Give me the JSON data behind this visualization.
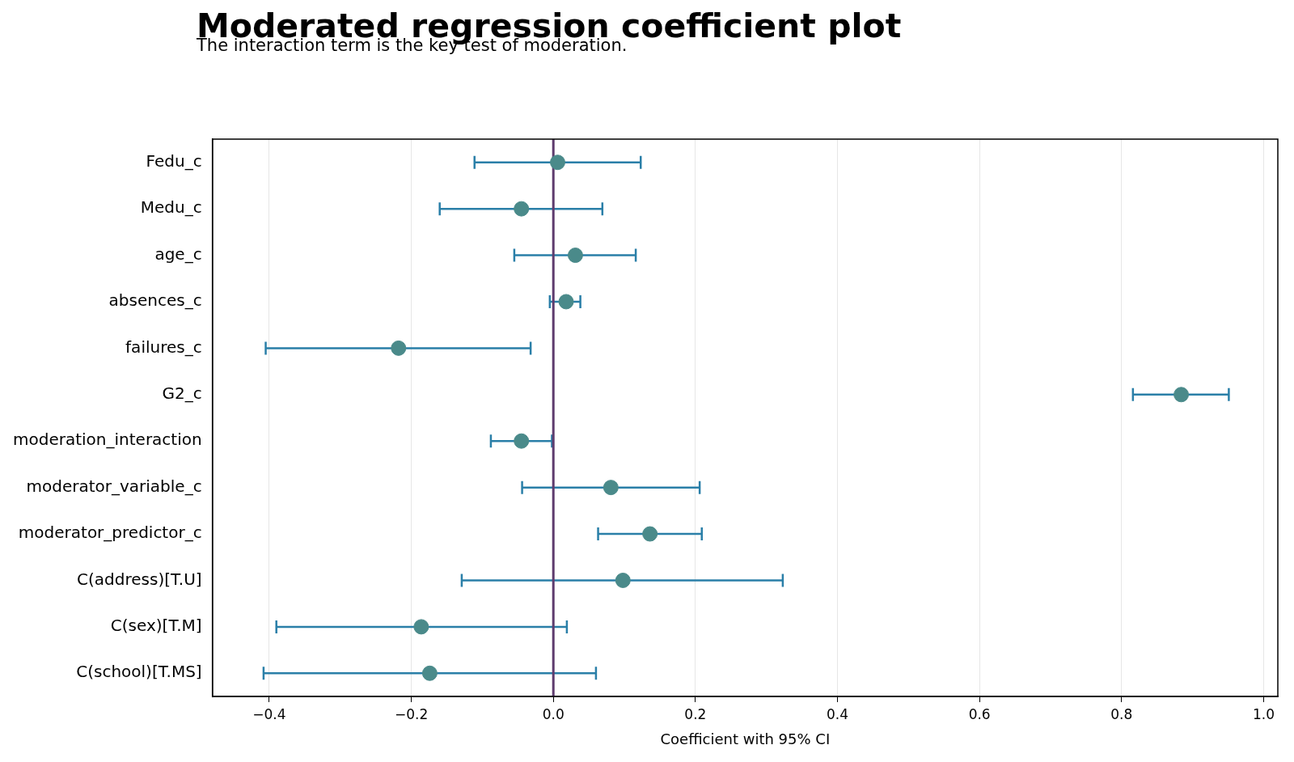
{
  "chart_data": {
    "type": "scatter",
    "orientation": "horizontal",
    "title": "Moderated regression coefficient plot",
    "subtitle": "The interaction term is the key test of moderation.",
    "xlabel": "Coefficient with 95% CI",
    "categories": [
      "Fedu_c",
      "Medu_c",
      "age_c",
      "absences_c",
      "failures_c",
      "G2_c",
      "moderation_interaction",
      "moderator_variable_c",
      "moderator_predictor_c",
      "C(address)[T.U]",
      "C(sex)[T.M]",
      "C(school)[T.MS]"
    ],
    "series": [
      {
        "color": "#4a8a8a",
        "values": [
          0.006,
          -0.045,
          0.031,
          0.018,
          -0.218,
          0.884,
          -0.045,
          0.081,
          0.136,
          0.098,
          -0.186,
          -0.174
        ],
        "errors": [
          [
            -0.111,
            0.123
          ],
          [
            -0.16,
            0.069
          ],
          [
            -0.055,
            0.116
          ],
          [
            -0.005,
            0.038
          ],
          [
            -0.405,
            -0.032
          ],
          [
            0.816,
            0.951
          ],
          [
            -0.088,
            -0.002
          ],
          [
            -0.044,
            0.206
          ],
          [
            0.063,
            0.209
          ],
          [
            -0.129,
            0.323
          ],
          [
            -0.39,
            0.019
          ],
          [
            -0.408,
            0.06
          ]
        ]
      }
    ],
    "xlim": [
      -0.48,
      1.02
    ],
    "xticks": [
      -0.4,
      -0.2,
      {
        "value": 0,
        "label": "0.0"
      },
      0.2,
      0.4,
      0.6,
      0.8,
      {
        "value": 1,
        "label": "1.0"
      }
    ],
    "ref_lines": [
      {
        "axis": "x",
        "value": 0,
        "color": "#5e3c6e"
      }
    ],
    "grid": "x",
    "marker": "circle",
    "legend": false
  }
}
